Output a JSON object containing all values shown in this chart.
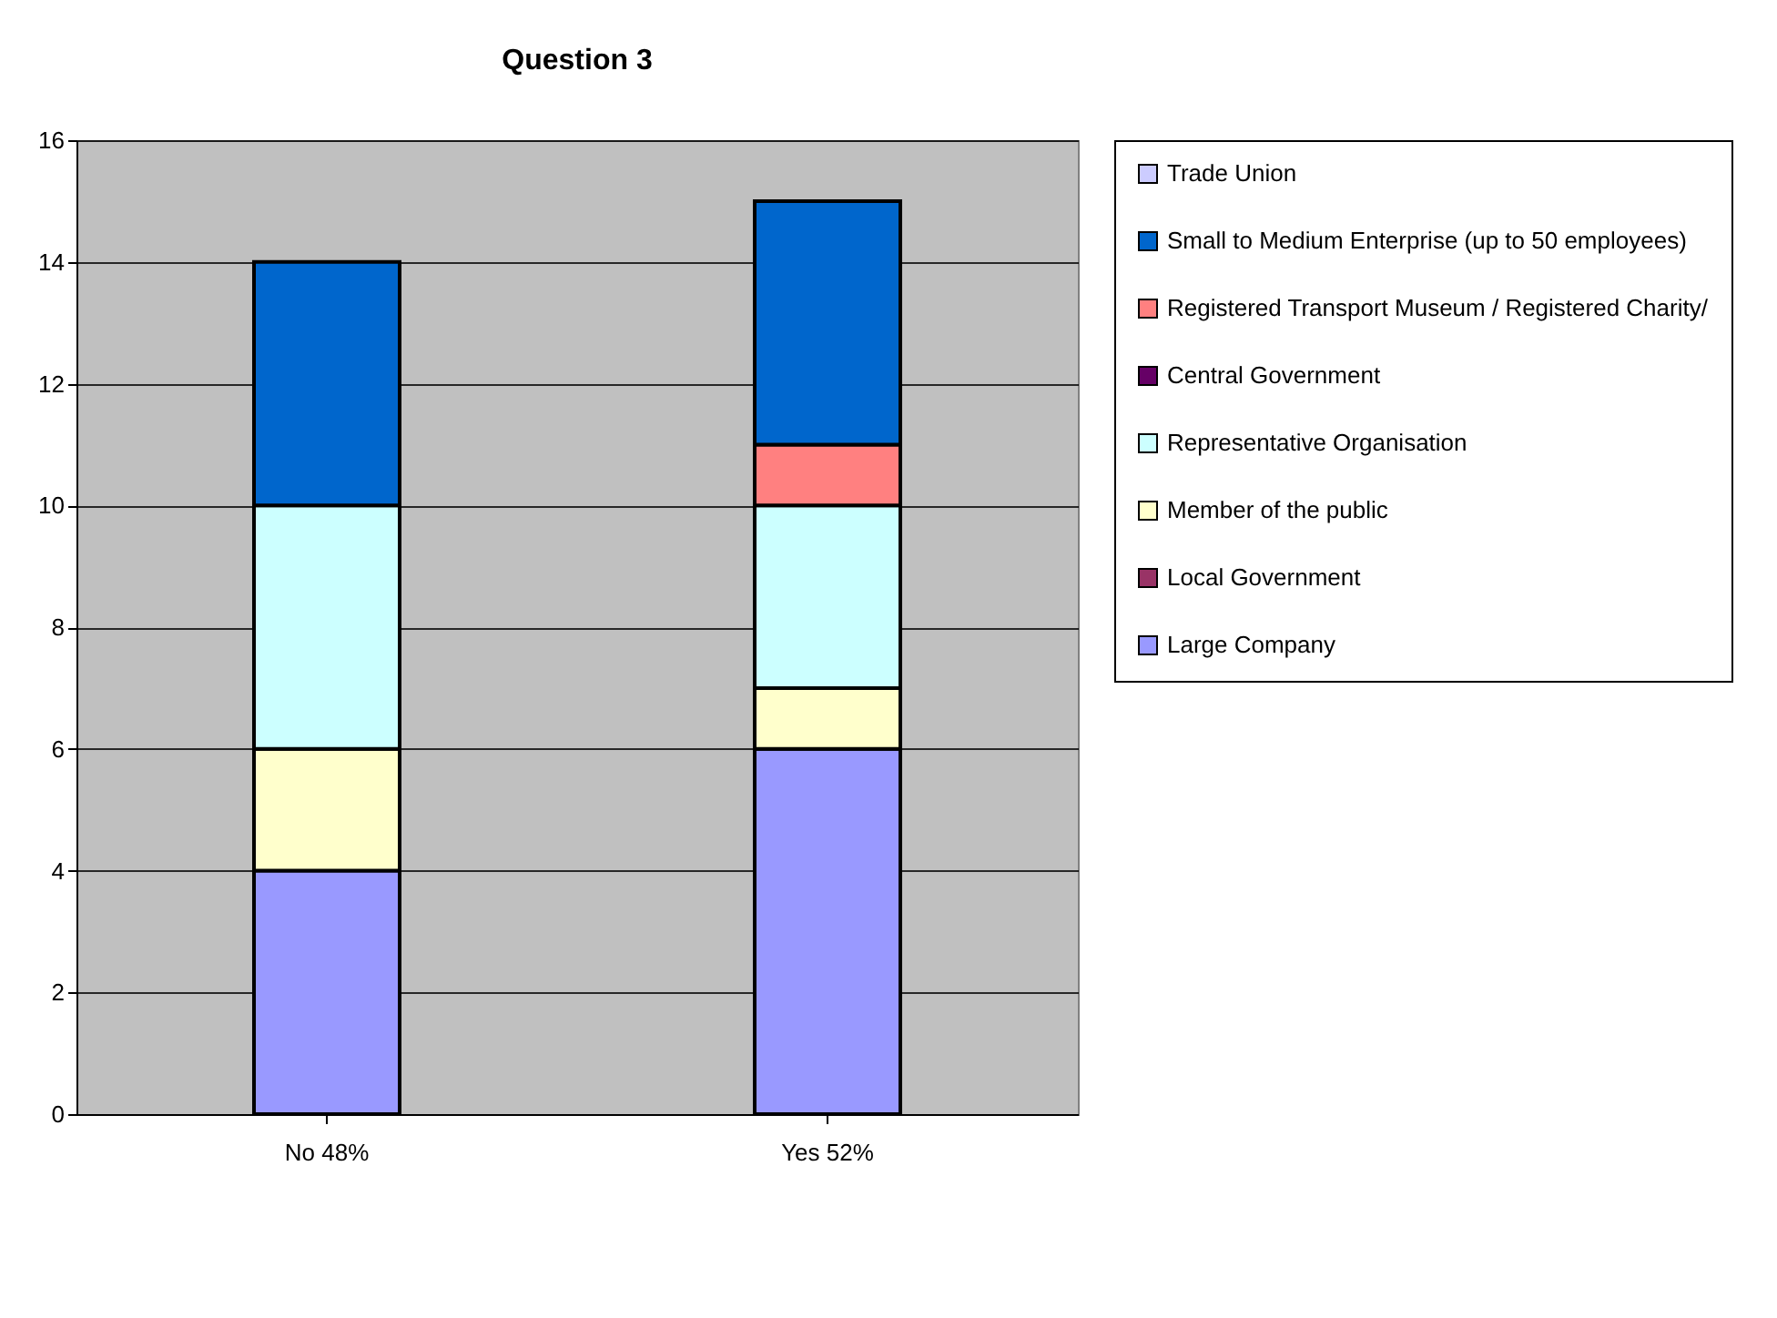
{
  "chart_data": {
    "type": "bar",
    "title": "Question 3",
    "categories": [
      "No  48%",
      "Yes  52%"
    ],
    "stacked": true,
    "series": [
      {
        "name": "Large Company",
        "color": "#9999ff",
        "values": [
          4,
          6
        ]
      },
      {
        "name": "Local Government",
        "color": "#993366",
        "values": [
          0,
          0
        ]
      },
      {
        "name": " Member of the public",
        "color": "#ffffcc",
        "values": [
          2,
          1
        ]
      },
      {
        "name": " Representative Organisation",
        "color": "#ccffff",
        "values": [
          4,
          3
        ]
      },
      {
        "name": "Central Government",
        "color": "#660066",
        "values": [
          0,
          0
        ]
      },
      {
        "name": "Registered Transport Museum / Registered Charity/",
        "color": "#ff8080",
        "values": [
          0,
          1
        ]
      },
      {
        "name": "Small to Medium Enterprise (up to 50 employees)",
        "color": "#0066cc",
        "values": [
          4,
          4
        ]
      },
      {
        "name": "Trade Union",
        "color": "#ccccff",
        "values": [
          0,
          0
        ]
      }
    ],
    "ylim": [
      0,
      16
    ],
    "yticks": [
      0,
      2,
      4,
      6,
      8,
      10,
      12,
      14,
      16
    ],
    "grid": "y",
    "legend": "right"
  }
}
